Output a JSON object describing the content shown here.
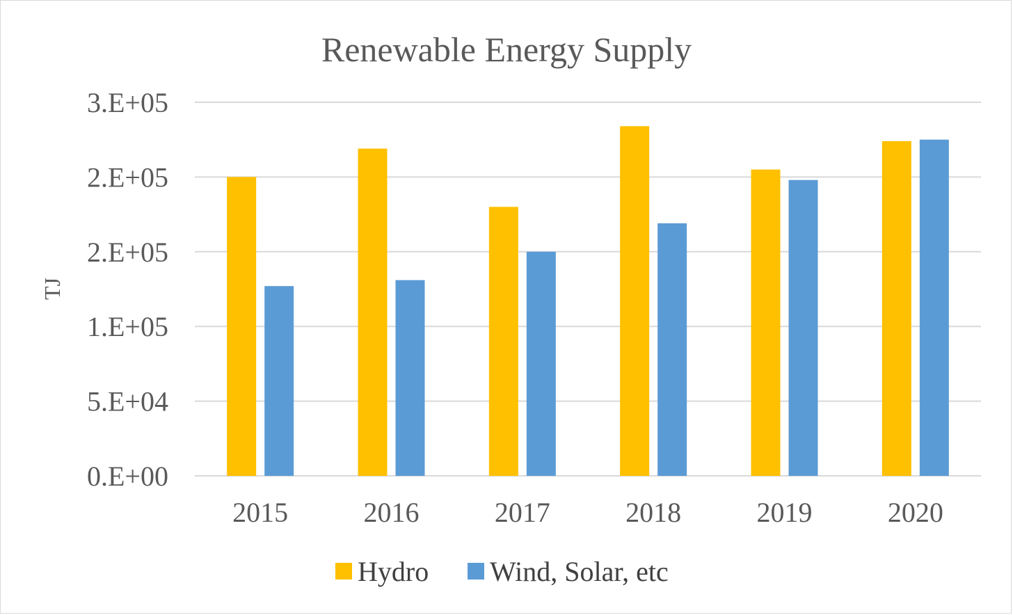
{
  "chart_data": {
    "type": "bar",
    "title": "Renewable Energy Supply",
    "xlabel": "",
    "ylabel": "TJ",
    "categories": [
      "2015",
      "2016",
      "2017",
      "2018",
      "2019",
      "2020"
    ],
    "series": [
      {
        "name": "Hydro",
        "color": "#FFC000",
        "values": [
          200000,
          219000,
          180000,
          234000,
          205000,
          224000
        ]
      },
      {
        "name": "Wind, Solar, etc",
        "color": "#5B9BD5",
        "values": [
          127000,
          131000,
          150000,
          169000,
          198000,
          225000
        ]
      }
    ],
    "ylim": [
      0,
      250000
    ],
    "yticks": [
      0,
      50000,
      100000,
      150000,
      200000,
      250000
    ],
    "ytick_labels": [
      "0.E+00",
      "5.E+04",
      "1.E+05",
      "2.E+05",
      "2.E+05",
      "3.E+05"
    ],
    "grid": true,
    "gridline_color": "#d9d9d9",
    "legend": "bottom"
  }
}
